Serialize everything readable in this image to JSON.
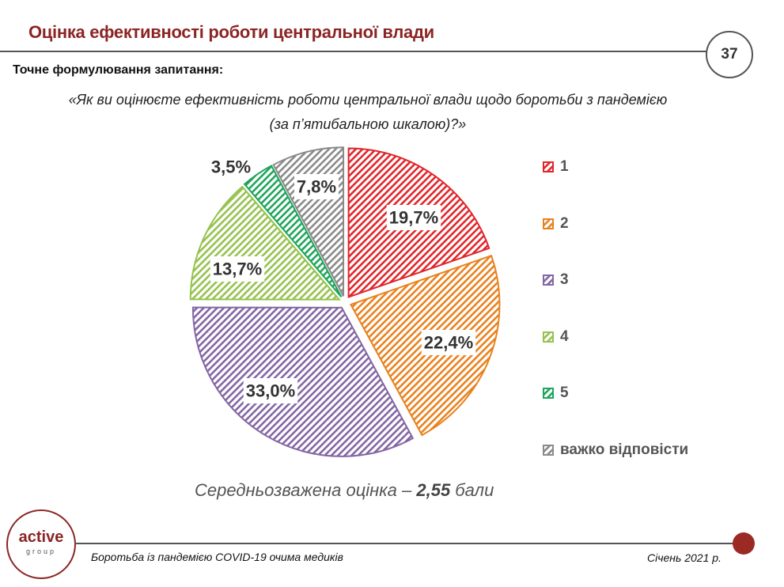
{
  "header": {
    "title": "Оцінка ефективності роботи центральної влади",
    "page_number": "37"
  },
  "question": {
    "label": "Точне формулювання запитання:",
    "text_line1": "«Як ви оцінюєте ефективність роботи центральної влади щодо боротьби з пандемією",
    "text_line2": "(за п’ятибальною шкалою)?»"
  },
  "chart_data": {
    "type": "pie",
    "slices": [
      {
        "name": "1",
        "value": 19.7,
        "label": "19,7%",
        "color": "#e0262b"
      },
      {
        "name": "2",
        "value": 22.4,
        "label": "22,4%",
        "color": "#e8821f"
      },
      {
        "name": "3",
        "value": 33.0,
        "label": "33,0%",
        "color": "#8366a4"
      },
      {
        "name": "4",
        "value": 13.7,
        "label": "13,7%",
        "color": "#95c24e"
      },
      {
        "name": "5",
        "value": 3.5,
        "label": "3,5%",
        "color": "#1fa55b"
      },
      {
        "name": "важко відповісти",
        "value": 7.8,
        "label": "7,8%",
        "color": "#8a8a8a"
      }
    ],
    "legend_position": "right",
    "pattern": "diagonal-hatch"
  },
  "summary": {
    "prefix": "Середньозважена оцінка – ",
    "value": "2,55",
    "suffix": " бали"
  },
  "logo": {
    "word": "active",
    "sub": "group"
  },
  "footer": {
    "left": "Боротьба із пандемією COVID-19 очима медиків",
    "right": "Січень 2021 р."
  },
  "colors": {
    "brand": "#8b2524",
    "accent_dot": "#9b2a25"
  }
}
